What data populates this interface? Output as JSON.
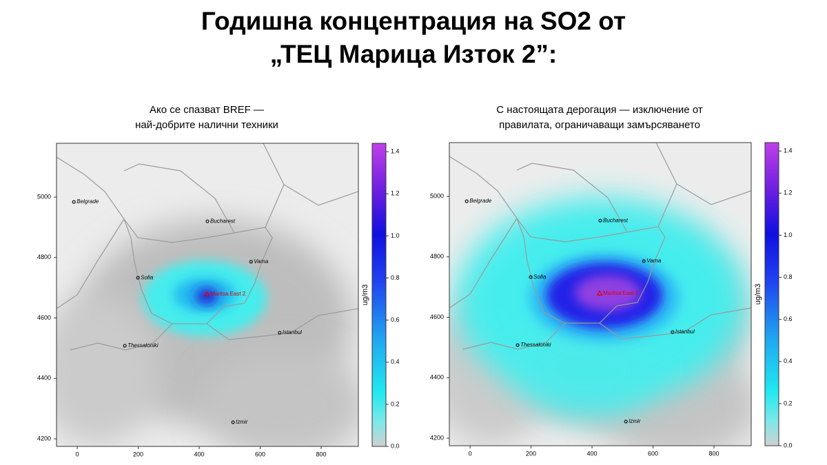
{
  "title_lines": [
    "Годишна концентрация на SO2 от",
    "„ТЕЦ Марица Изток 2”:"
  ],
  "panels": [
    {
      "subtitle": [
        "Ако се спазват BREF —",
        "най-добрите налични техники"
      ],
      "xlim": [
        -68,
        922
      ],
      "ylim": [
        4175,
        5178
      ],
      "xticks": [
        0,
        200,
        400,
        600,
        800
      ],
      "yticks": [
        4200,
        4400,
        4600,
        4800,
        5000
      ],
      "cities": [
        {
          "name": "Belgrade",
          "x": -11,
          "y": 4984
        },
        {
          "name": "Bucharest",
          "x": 427,
          "y": 4920
        },
        {
          "name": "Varna",
          "x": 570,
          "y": 4786
        },
        {
          "name": "Sofia",
          "x": 199,
          "y": 4733
        },
        {
          "name": "Istanbul",
          "x": 664,
          "y": 4551
        },
        {
          "name": "Thessaloniki",
          "x": 156,
          "y": 4508
        },
        {
          "name": "Izmir",
          "x": 511,
          "y": 4255
        }
      ],
      "source": {
        "name": "Maritsa East 2",
        "x": 425,
        "y": 4679
      },
      "colorbar": {
        "label": "ug/m3",
        "lim": [
          0,
          1.44
        ],
        "ticks": [
          {
            "value": 0,
            "label": "0.0"
          },
          {
            "value": 0.2,
            "label": "0.2"
          },
          {
            "value": 0.4,
            "label": "0.4"
          },
          {
            "value": 0.6,
            "label": "0.6"
          },
          {
            "value": 0.8,
            "label": "0.8"
          },
          {
            "value": 1,
            "label": "1.0"
          },
          {
            "value": 1.2,
            "label": "1.2"
          },
          {
            "value": 1.4,
            "label": "1.4"
          }
        ]
      }
    },
    {
      "subtitle": [
        "С настоящата дерогация — изключение от",
        "правилата, ограничаващи замърсяването"
      ],
      "xlim": [
        -68,
        922
      ],
      "ylim": [
        4175,
        5178
      ],
      "xticks": [
        0,
        200,
        400,
        600,
        800
      ],
      "yticks": [
        4200,
        4400,
        4600,
        4800,
        5000
      ],
      "cities": [
        {
          "name": "Belgrade",
          "x": -11,
          "y": 4984
        },
        {
          "name": "Bucharest",
          "x": 427,
          "y": 4920
        },
        {
          "name": "Varna",
          "x": 570,
          "y": 4786
        },
        {
          "name": "Sofia",
          "x": 199,
          "y": 4733
        },
        {
          "name": "Istanbul",
          "x": 664,
          "y": 4551
        },
        {
          "name": "Thessaloniki",
          "x": 156,
          "y": 4508
        },
        {
          "name": "Izmir",
          "x": 511,
          "y": 4255
        }
      ],
      "source": {
        "name": "Maritsa East 2",
        "x": 425,
        "y": 4679
      },
      "colorbar": {
        "label": "ug/m3",
        "lim": [
          0,
          1.44
        ],
        "ticks": [
          {
            "value": 0,
            "label": "0.0"
          },
          {
            "value": 0.2,
            "label": "0.2"
          },
          {
            "value": 0.4,
            "label": "0.4"
          },
          {
            "value": 0.6,
            "label": "0.6"
          },
          {
            "value": 0.8,
            "label": "0.8"
          },
          {
            "value": 1,
            "label": "1.0"
          },
          {
            "value": 1.2,
            "label": "1.2"
          },
          {
            "value": 1.4,
            "label": "1.4"
          }
        ]
      }
    }
  ]
}
